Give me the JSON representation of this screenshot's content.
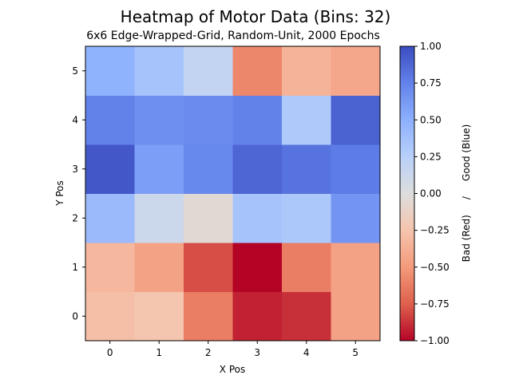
{
  "chart_data": {
    "type": "heatmap",
    "title": "Heatmap of Motor Data (Bins: 32)",
    "subtitle": "6x6 Edge-Wrapped-Grid, Random-Unit, 2000 Epochs",
    "xlabel": "X Pos",
    "ylabel": "Y Pos",
    "x": [
      0,
      1,
      2,
      3,
      4,
      5
    ],
    "y": [
      0,
      1,
      2,
      3,
      4,
      5
    ],
    "xticks": [
      "0",
      "1",
      "2",
      "3",
      "4",
      "5"
    ],
    "yticks": [
      "0",
      "1",
      "2",
      "3",
      "4",
      "5"
    ],
    "values_note": "rows indexed by Y Pos (row 0 = y 0), columns by X Pos",
    "values": [
      [
        -0.28,
        -0.24,
        -0.62,
        -0.92,
        -0.88,
        -0.45
      ],
      [
        -0.33,
        -0.45,
        -0.8,
        -1.0,
        -0.62,
        -0.45
      ],
      [
        0.42,
        0.12,
        -0.05,
        0.35,
        0.32,
        0.65
      ],
      [
        0.95,
        0.6,
        0.72,
        0.88,
        0.82,
        0.78
      ],
      [
        0.75,
        0.68,
        0.7,
        0.75,
        0.3,
        0.9
      ],
      [
        0.48,
        0.35,
        0.18,
        -0.58,
        -0.35,
        -0.42
      ]
    ],
    "colormap": "coolwarm",
    "clim": [
      -1.0,
      1.0
    ],
    "colorbar": {
      "ticks": [
        1.0,
        0.75,
        0.5,
        0.25,
        0.0,
        -0.25,
        -0.5,
        -0.75,
        -1.0
      ],
      "tick_labels": [
        "1.00",
        "0.75",
        "0.50",
        "0.25",
        "0.00",
        "−0.25",
        "−0.50",
        "−0.75",
        "−1.00"
      ],
      "label": "Bad (Red)     /     Good (Blue)"
    }
  }
}
